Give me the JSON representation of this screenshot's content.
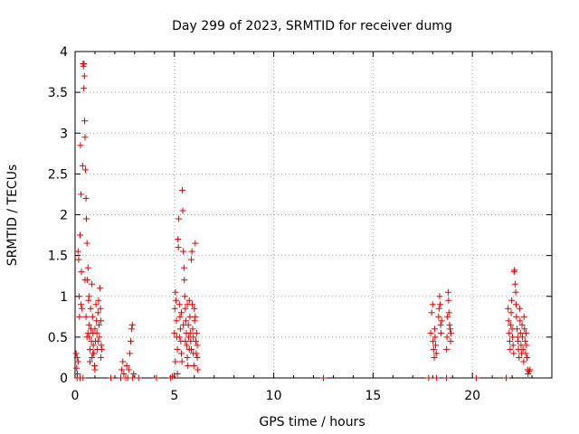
{
  "chart_data": {
    "type": "scatter",
    "title": "Day 299 of 2023, SRMTID for receiver dumg",
    "xlabel": "GPS time / hours",
    "ylabel": "SRMTID / TECUs",
    "xlim": [
      0,
      24
    ],
    "ylim": [
      0,
      4
    ],
    "xticks": [
      0,
      5,
      10,
      15,
      20
    ],
    "xtick_labels": [
      "0",
      "5",
      "10",
      "15",
      "20"
    ],
    "yticks": [
      0,
      0.5,
      1,
      1.5,
      2,
      2.5,
      3,
      3.5,
      4
    ],
    "ytick_labels": [
      "0",
      "0.5",
      "1",
      "1.5",
      "2",
      "2.5",
      "3",
      "3.5",
      "4"
    ],
    "grid": true,
    "marker": "+",
    "color": "#e00000",
    "series": [
      {
        "name": "SRMTID",
        "points": [
          [
            0.05,
            0.3
          ],
          [
            0.08,
            0.12
          ],
          [
            0.1,
            0.25
          ],
          [
            0.12,
            0.05
          ],
          [
            0.15,
            1.55
          ],
          [
            0.18,
            1.45
          ],
          [
            0.2,
            1.0
          ],
          [
            0.22,
            0.75
          ],
          [
            0.25,
            1.75
          ],
          [
            0.27,
            2.85
          ],
          [
            0.3,
            2.25
          ],
          [
            0.32,
            1.3
          ],
          [
            0.35,
            0.85
          ],
          [
            0.38,
            2.6
          ],
          [
            0.4,
            3.85
          ],
          [
            0.42,
            3.82
          ],
          [
            0.44,
            3.55
          ],
          [
            0.45,
            3.85
          ],
          [
            0.47,
            3.7
          ],
          [
            0.48,
            3.15
          ],
          [
            0.5,
            2.95
          ],
          [
            0.52,
            2.55
          ],
          [
            0.55,
            2.2
          ],
          [
            0.57,
            1.95
          ],
          [
            0.6,
            1.65
          ],
          [
            0.62,
            1.2
          ],
          [
            0.65,
            1.35
          ],
          [
            0.68,
            0.95
          ],
          [
            0.7,
            0.65
          ],
          [
            0.72,
            0.5
          ],
          [
            0.75,
            0.35
          ],
          [
            0.78,
            0.85
          ],
          [
            0.8,
            0.6
          ],
          [
            0.82,
            0.45
          ],
          [
            0.85,
            0.25
          ],
          [
            0.88,
            0.75
          ],
          [
            0.9,
            0.55
          ],
          [
            0.92,
            0.4
          ],
          [
            0.95,
            0.3
          ],
          [
            0.98,
            0.15
          ],
          [
            1.0,
            0.6
          ],
          [
            1.02,
            0.45
          ],
          [
            1.05,
            0.9
          ],
          [
            1.08,
            0.7
          ],
          [
            1.1,
            0.55
          ],
          [
            1.12,
            0.35
          ],
          [
            1.15,
            0.8
          ],
          [
            1.18,
            0.95
          ],
          [
            1.2,
            0.65
          ],
          [
            1.22,
            0.5
          ],
          [
            1.25,
            1.1
          ],
          [
            1.28,
            0.85
          ],
          [
            1.3,
            0.7
          ],
          [
            1.32,
            0.4
          ],
          [
            1.35,
            0.35
          ],
          [
            0.1,
            0.0
          ],
          [
            0.25,
            0.0
          ],
          [
            0.4,
            0.0
          ],
          [
            0.6,
            0.5
          ],
          [
            0.7,
            1.0
          ],
          [
            0.9,
            0.3
          ],
          [
            1.0,
            0.1
          ],
          [
            0.15,
            0.2
          ],
          [
            0.3,
            0.9
          ],
          [
            0.5,
            1.2
          ],
          [
            0.55,
            0.75
          ],
          [
            0.65,
            0.55
          ],
          [
            0.75,
            0.2
          ],
          [
            0.85,
            1.15
          ],
          [
            1.15,
            0.45
          ],
          [
            1.3,
            0.25
          ],
          [
            1.8,
            0.0
          ],
          [
            2.3,
            0.0
          ],
          [
            2.35,
            0.1
          ],
          [
            2.4,
            0.2
          ],
          [
            2.45,
            0.05
          ],
          [
            2.55,
            0.0
          ],
          [
            2.6,
            0.15
          ],
          [
            2.65,
            0.0
          ],
          [
            2.7,
            0.1
          ],
          [
            2.75,
            0.3
          ],
          [
            2.8,
            0.45
          ],
          [
            2.85,
            0.6
          ],
          [
            2.88,
            0.65
          ],
          [
            2.9,
            0.0
          ],
          [
            2.95,
            0.05
          ],
          [
            3.2,
            0.0
          ],
          [
            4.1,
            0.0
          ],
          [
            4.8,
            0.0
          ],
          [
            4.9,
            0.02
          ],
          [
            5.0,
            0.55
          ],
          [
            5.02,
            0.85
          ],
          [
            5.05,
            1.05
          ],
          [
            5.08,
            0.95
          ],
          [
            5.1,
            0.7
          ],
          [
            5.12,
            0.5
          ],
          [
            5.15,
            0.35
          ],
          [
            5.18,
            1.7
          ],
          [
            5.2,
            1.6
          ],
          [
            5.22,
            1.95
          ],
          [
            5.25,
            0.9
          ],
          [
            5.28,
            0.75
          ],
          [
            5.3,
            0.6
          ],
          [
            5.32,
            0.45
          ],
          [
            5.35,
            0.3
          ],
          [
            5.38,
            0.2
          ],
          [
            5.4,
            2.3
          ],
          [
            5.42,
            2.05
          ],
          [
            5.45,
            1.55
          ],
          [
            5.48,
            1.35
          ],
          [
            5.5,
            1.2
          ],
          [
            5.52,
            1.0
          ],
          [
            5.55,
            0.85
          ],
          [
            5.58,
            0.7
          ],
          [
            5.6,
            0.55
          ],
          [
            5.62,
            0.4
          ],
          [
            5.65,
            0.25
          ],
          [
            5.68,
            0.15
          ],
          [
            5.7,
            0.65
          ],
          [
            5.72,
            0.5
          ],
          [
            5.75,
            0.35
          ],
          [
            5.78,
            0.75
          ],
          [
            5.8,
            0.55
          ],
          [
            5.82,
            0.45
          ],
          [
            5.85,
            1.45
          ],
          [
            5.88,
            1.55
          ],
          [
            5.9,
            0.9
          ],
          [
            5.92,
            0.6
          ],
          [
            5.95,
            0.3
          ],
          [
            5.98,
            0.15
          ],
          [
            6.0,
            0.85
          ],
          [
            6.02,
            0.7
          ],
          [
            6.05,
            1.65
          ],
          [
            6.08,
            0.45
          ],
          [
            6.1,
            0.3
          ],
          [
            6.12,
            0.55
          ],
          [
            6.15,
            0.25
          ],
          [
            6.18,
            0.1
          ],
          [
            5.05,
            0.2
          ],
          [
            5.15,
            0.05
          ],
          [
            5.25,
            0.5
          ],
          [
            5.35,
            0.8
          ],
          [
            5.45,
            0.65
          ],
          [
            5.55,
            0.45
          ],
          [
            5.65,
            0.9
          ],
          [
            5.75,
            0.95
          ],
          [
            5.85,
            0.35
          ],
          [
            5.95,
            0.5
          ],
          [
            6.05,
            0.75
          ],
          [
            6.15,
            0.4
          ],
          [
            12.5,
            0.0
          ],
          [
            17.8,
            0.0
          ],
          [
            18.2,
            0.0
          ],
          [
            18.7,
            0.0
          ],
          [
            20.2,
            0.0
          ],
          [
            21.7,
            0.0
          ],
          [
            17.9,
            0.55
          ],
          [
            17.95,
            0.8
          ],
          [
            18.0,
            0.9
          ],
          [
            18.02,
            0.45
          ],
          [
            18.05,
            0.35
          ],
          [
            18.08,
            0.25
          ],
          [
            18.1,
            0.6
          ],
          [
            18.12,
            0.5
          ],
          [
            18.15,
            0.4
          ],
          [
            18.18,
            0.3
          ],
          [
            18.3,
            0.75
          ],
          [
            18.32,
            0.85
          ],
          [
            18.35,
            1.0
          ],
          [
            18.38,
            0.9
          ],
          [
            18.4,
            0.65
          ],
          [
            18.42,
            0.55
          ],
          [
            18.45,
            0.7
          ],
          [
            18.7,
            0.35
          ],
          [
            18.72,
            0.5
          ],
          [
            18.75,
            0.75
          ],
          [
            18.78,
            1.05
          ],
          [
            18.8,
            0.95
          ],
          [
            18.82,
            0.8
          ],
          [
            18.85,
            0.65
          ],
          [
            18.88,
            0.6
          ],
          [
            18.9,
            0.45
          ],
          [
            18.92,
            0.55
          ],
          [
            21.8,
            0.85
          ],
          [
            21.82,
            0.7
          ],
          [
            21.85,
            0.55
          ],
          [
            21.88,
            0.45
          ],
          [
            21.9,
            0.35
          ],
          [
            21.92,
            0.65
          ],
          [
            21.95,
            0.8
          ],
          [
            21.98,
            0.95
          ],
          [
            22.0,
            0.6
          ],
          [
            22.02,
            0.5
          ],
          [
            22.05,
            0.4
          ],
          [
            22.08,
            0.3
          ],
          [
            22.1,
            1.3
          ],
          [
            22.12,
            1.32
          ],
          [
            22.15,
            1.15
          ],
          [
            22.18,
            1.05
          ],
          [
            22.2,
            0.9
          ],
          [
            22.22,
            0.75
          ],
          [
            22.25,
            0.6
          ],
          [
            22.28,
            0.5
          ],
          [
            22.3,
            0.45
          ],
          [
            22.32,
            0.35
          ],
          [
            22.35,
            0.25
          ],
          [
            22.38,
            0.85
          ],
          [
            22.4,
            0.7
          ],
          [
            22.42,
            0.55
          ],
          [
            22.45,
            0.4
          ],
          [
            22.48,
            0.3
          ],
          [
            22.5,
            0.65
          ],
          [
            22.52,
            0.5
          ],
          [
            22.55,
            0.35
          ],
          [
            22.58,
            0.2
          ],
          [
            22.6,
            0.75
          ],
          [
            22.62,
            0.6
          ],
          [
            22.65,
            0.45
          ],
          [
            22.68,
            0.3
          ],
          [
            22.7,
            0.55
          ],
          [
            22.72,
            0.4
          ],
          [
            22.75,
            0.25
          ],
          [
            22.78,
            0.1
          ],
          [
            22.8,
            0.05
          ],
          [
            22.85,
            0.08
          ],
          [
            22.9,
            0.1
          ]
        ]
      }
    ]
  }
}
